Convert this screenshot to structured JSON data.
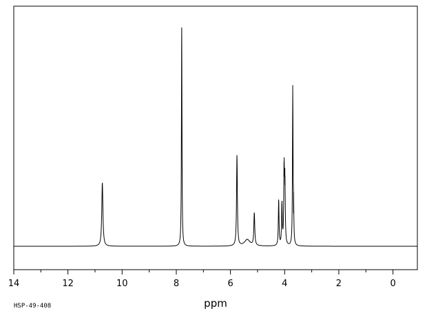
{
  "chart_data": {
    "type": "line",
    "xlabel": "ppm",
    "xlim": [
      14.0,
      -0.9
    ],
    "ylim": [
      0,
      100
    ],
    "x_tick_labels": [
      "14",
      "12",
      "10",
      "8",
      "6",
      "4",
      "2",
      "0"
    ],
    "x_tick_values": [
      14,
      12,
      10,
      8,
      6,
      4,
      2,
      0
    ],
    "x_minor_step": 1,
    "grid": false,
    "baseline": 0,
    "series": [
      {
        "peaks": [
          {
            "x": 10.73,
            "y": 29.0,
            "width": 0.025
          },
          {
            "x": 7.8,
            "y": 100.0,
            "width": 0.012
          },
          {
            "x": 5.76,
            "y": 41.5,
            "width": 0.018
          },
          {
            "x": 5.38,
            "y": 3.0,
            "width": 0.12
          },
          {
            "x": 5.12,
            "y": 15.0,
            "width": 0.02
          },
          {
            "x": 4.22,
            "y": 21.0,
            "width": 0.015
          },
          {
            "x": 4.1,
            "y": 19.0,
            "width": 0.015
          },
          {
            "x": 4.02,
            "y": 34.5,
            "width": 0.015
          },
          {
            "x": 3.99,
            "y": 28.0,
            "width": 0.015
          },
          {
            "x": 3.7,
            "y": 71.5,
            "width": 0.012
          },
          {
            "x": 3.67,
            "y": 15.0,
            "width": 0.012
          }
        ]
      }
    ]
  },
  "sample_id": "HSP-49-408"
}
